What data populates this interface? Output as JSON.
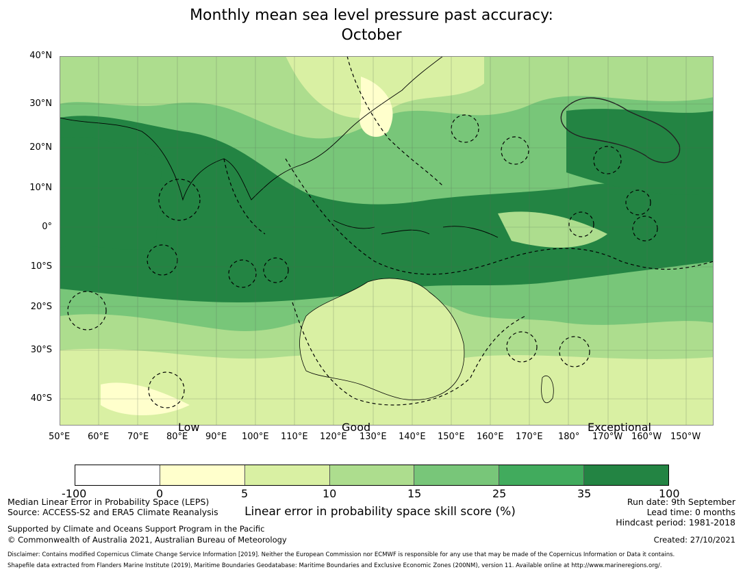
{
  "title_line1": "Monthly mean sea level pressure past accuracy:",
  "title_line2": "October",
  "lat_labels": [
    "40°N",
    "30°N",
    "20°N",
    "10°N",
    "0°",
    "10°S",
    "20°S",
    "30°S",
    "40°S"
  ],
  "lon_labels": [
    "50°E",
    "60°E",
    "70°E",
    "80°E",
    "90°E",
    "100°E",
    "110°E",
    "120°E",
    "130°E",
    "140°E",
    "150°E",
    "160°E",
    "170°E",
    "180°",
    "170°W",
    "160°W",
    "150°W"
  ],
  "quality": {
    "low": "Low",
    "good": "Good",
    "exceptional": "Exceptional"
  },
  "colorbar": {
    "ticks": [
      "-100",
      "0",
      "5",
      "10",
      "15",
      "25",
      "35",
      "100"
    ],
    "colors": [
      "#ffffff",
      "#ffffcc",
      "#d9f0a3",
      "#addd8e",
      "#78c679",
      "#41ab5d",
      "#238443"
    ],
    "label": "Linear error in probability space skill score (%)"
  },
  "footer": {
    "left1": "Median Linear Error in Probability Space (LEPS)",
    "left2": "Source: ACCESS-S2 and ERA5 Climate Reanalysis",
    "left3": "Supported by Climate and Oceans Support Program in the Pacific",
    "left4": "© Commonwealth of Australia 2021, Australian Bureau of Meteorology",
    "right1": "Run date: 9th September",
    "right2": "Lead time: 0 months",
    "right3": "Hindcast period: 1981-2018",
    "created": "Created: 27/10/2021",
    "disclaimer1": "Disclaimer: Contains modified Copernicus Climate Change Service Information [2019]. Neither the European Commission nor ECMWF is responsible for any use that may be made of the Copernicus Information or Data it contains.",
    "disclaimer2": "Shapefile data extracted from Flanders Marine Institute (2019), Maritime Boundaries Geodatabase: Maritime Boundaries and Exclusive Economic Zones (200NM), version 11. Available online at http://www.marineregions.org/."
  }
}
